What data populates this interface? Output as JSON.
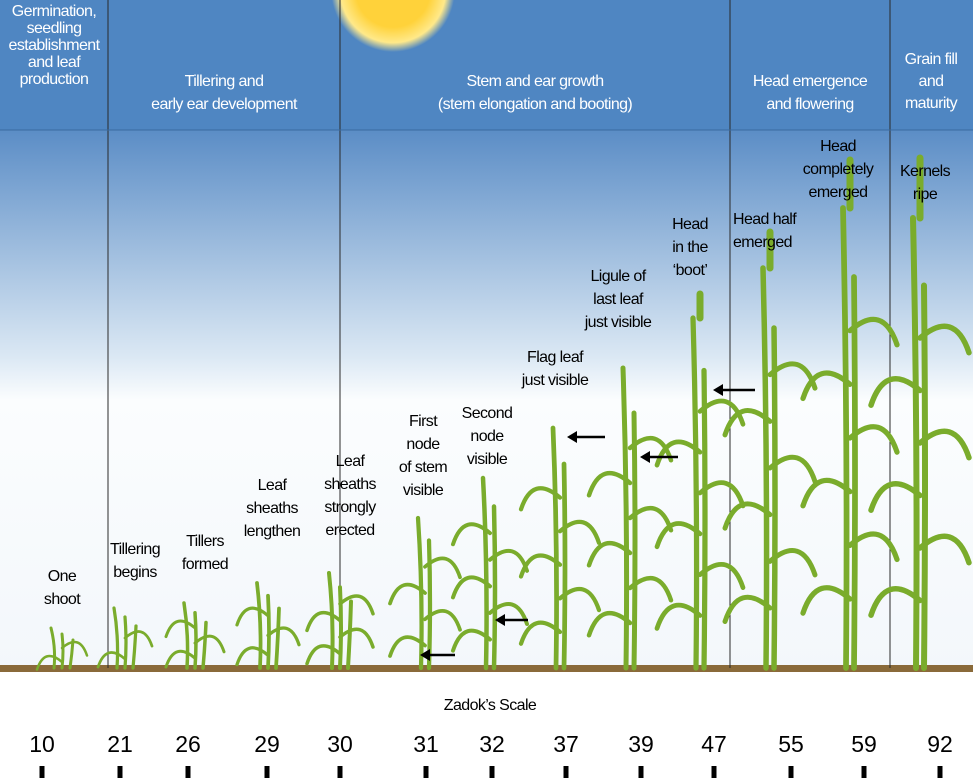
{
  "header": {
    "stages": [
      {
        "lines": [
          "Germination,",
          "seedling",
          "establishment",
          "and leaf",
          "production"
        ]
      },
      {
        "lines": [
          "Tillering and",
          "early ear development"
        ]
      },
      {
        "lines": [
          "Stem and ear growth",
          "(stem elongation and booting)"
        ]
      },
      {
        "lines": [
          "Head emergence",
          "and flowering"
        ]
      },
      {
        "lines": [
          "Grain fill",
          "and",
          "maturity"
        ]
      }
    ]
  },
  "labels": [
    {
      "lines": [
        "One",
        "shoot"
      ]
    },
    {
      "lines": [
        "Tillering",
        "begins"
      ]
    },
    {
      "lines": [
        "Tillers",
        "formed"
      ]
    },
    {
      "lines": [
        "Leaf",
        "sheaths",
        "lengthen"
      ]
    },
    {
      "lines": [
        "Leaf",
        "sheaths",
        "strongly",
        "erected"
      ]
    },
    {
      "lines": [
        "First",
        "node",
        "of stem",
        "visible"
      ]
    },
    {
      "lines": [
        "Second",
        "node",
        "visible"
      ]
    },
    {
      "lines": [
        "Flag leaf",
        "just visible"
      ]
    },
    {
      "lines": [
        "Ligule of",
        "last leaf",
        "just visible"
      ]
    },
    {
      "lines": [
        "Head",
        "in the",
        "‘boot’"
      ]
    },
    {
      "lines": [
        "Head half",
        "emerged"
      ]
    },
    {
      "lines": [
        "Head",
        "completely",
        "emerged"
      ]
    },
    {
      "lines": [
        "Kernels",
        "ripe"
      ]
    }
  ],
  "scale": {
    "title": "Zadok’s Scale",
    "values": [
      10,
      21,
      26,
      29,
      30,
      31,
      32,
      37,
      39,
      47,
      55,
      59,
      92
    ]
  }
}
